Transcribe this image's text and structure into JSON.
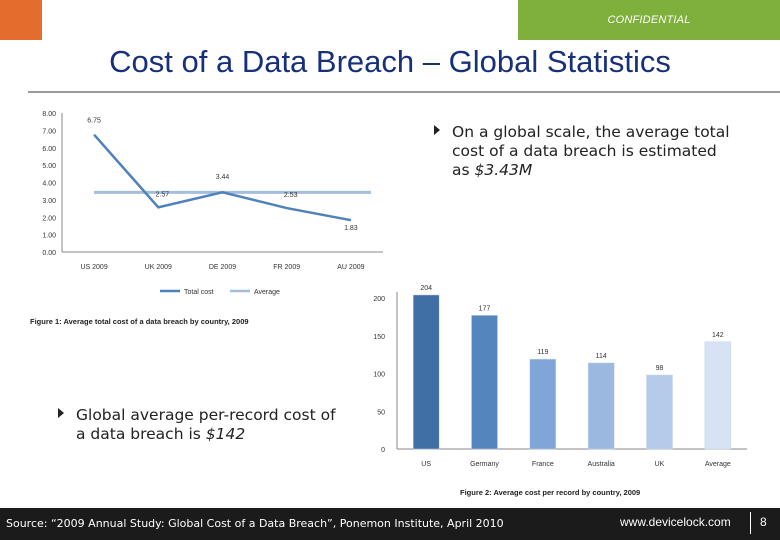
{
  "header": {
    "confidential": "CONFIDENTIAL"
  },
  "title": "Cost of a Data Breach – Global Statistics",
  "bullets": [
    {
      "text": "On a global scale, the average total cost of a data breach is estimated as ",
      "highlight": "$3.43M"
    },
    {
      "text": "Global average per-record cost of a data breach is ",
      "highlight": "$142"
    }
  ],
  "colors": {
    "orange": "#e46c2d",
    "green": "#7fb03c",
    "title": "#17307a",
    "line_total": "#4f81bd",
    "line_average": "#a6bedd"
  },
  "chart_data": [
    {
      "type": "line",
      "title": "Figure 1: Average total cost of a data breach by country, 2009",
      "categories": [
        "US 2009",
        "UK 2009",
        "DE 2009",
        "FR 2009",
        "AU 2009"
      ],
      "series": [
        {
          "name": "Total cost",
          "values": [
            6.75,
            2.57,
            3.44,
            2.53,
            1.83
          ]
        },
        {
          "name": "Average",
          "values": [
            3.43,
            3.43,
            3.43,
            3.43,
            3.43
          ]
        }
      ],
      "ylim": [
        0,
        8
      ],
      "yticks": [
        "0.00",
        "1.00",
        "2.00",
        "3.00",
        "4.00",
        "5.00",
        "6.00",
        "7.00",
        "8.00"
      ],
      "data_labels": [
        "6.75",
        "2.57",
        "3.44",
        "2.53",
        "1.83"
      ],
      "legend": "bottom",
      "grid": false
    },
    {
      "type": "bar",
      "title": "Figure 2: Average cost per record by country, 2009",
      "categories": [
        "US",
        "Germany",
        "France",
        "Australia",
        "UK",
        "Average"
      ],
      "values": [
        204,
        177,
        119,
        114,
        98,
        142
      ],
      "bar_colors": [
        "#3f6fa5",
        "#5485bd",
        "#7fa6d6",
        "#9ab8e0",
        "#b6cbea",
        "#d7e3f4"
      ],
      "ylim": [
        0,
        200
      ],
      "yticks": [
        "0",
        "50",
        "100",
        "150",
        "200"
      ],
      "data_labels": [
        "204",
        "177",
        "119",
        "114",
        "98",
        "142"
      ],
      "grid": false
    }
  ],
  "footer": {
    "source": "Source: “2009 Annual Study: Global Cost of a Data Breach”, Ponemon Institute, April 2010",
    "site": "www.devicelock.com",
    "page": "8"
  }
}
